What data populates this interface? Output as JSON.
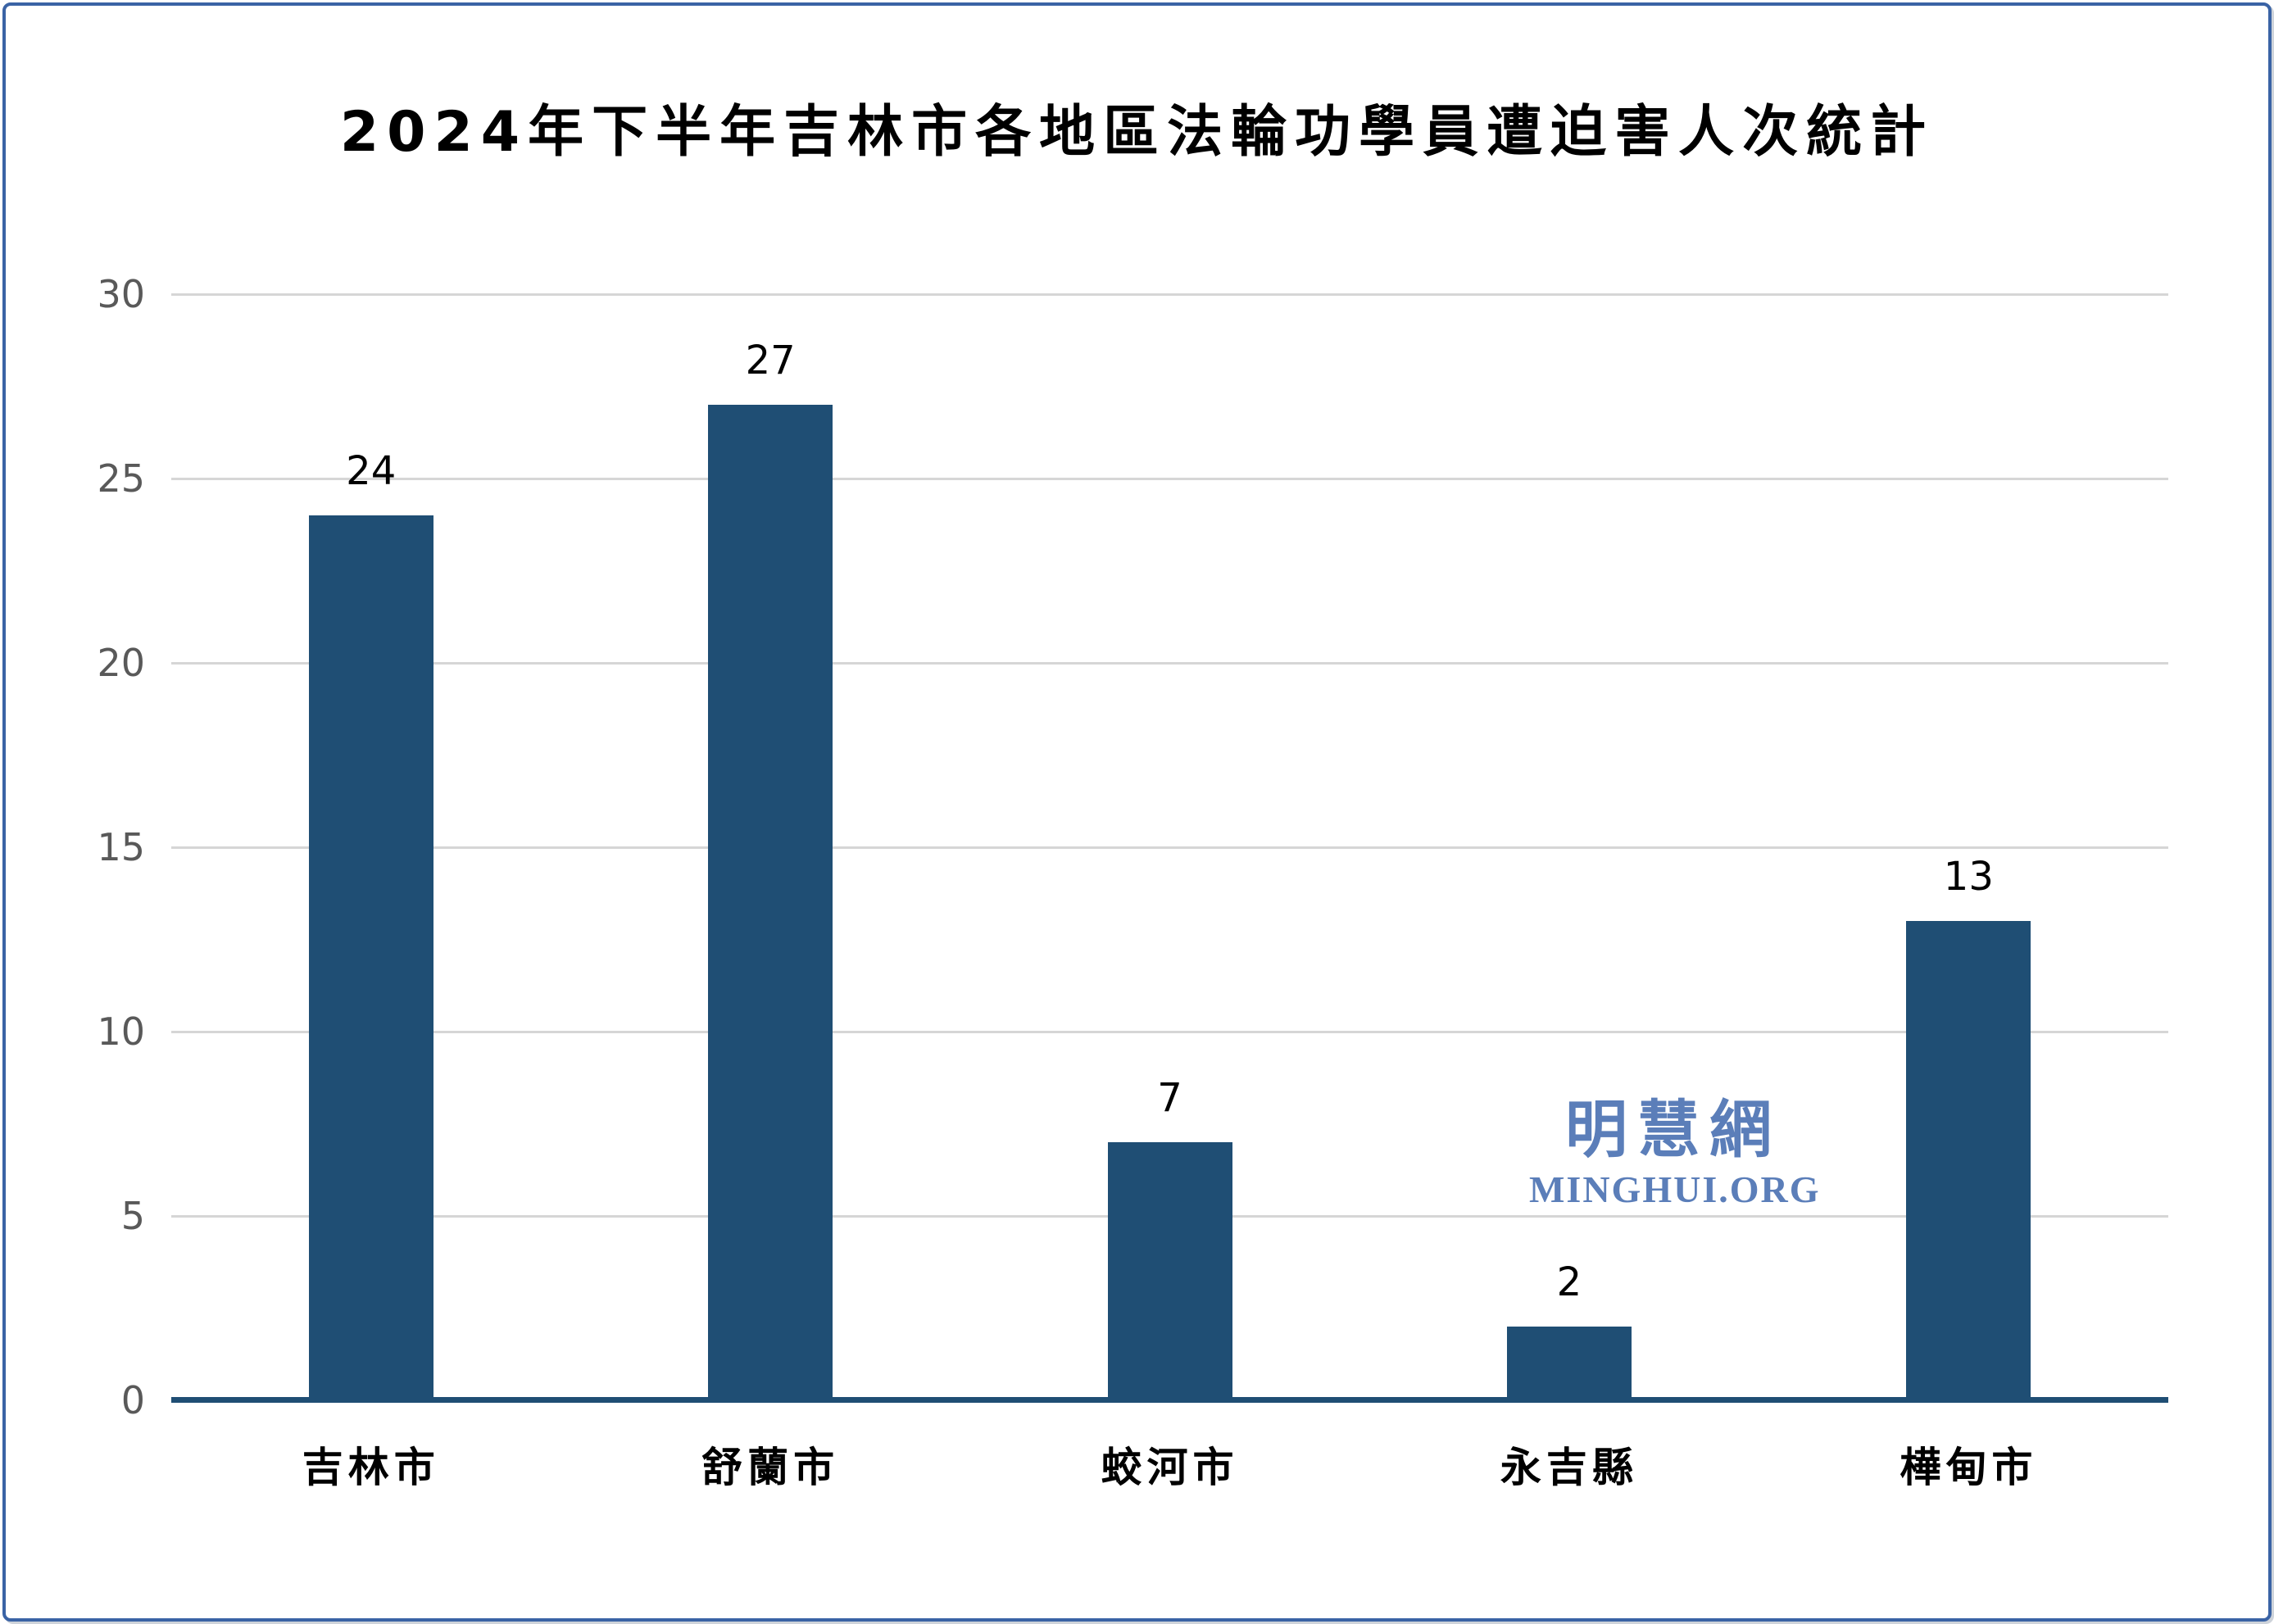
{
  "frame": {
    "background": "#FFFFFF",
    "border_color": "#3A63A5"
  },
  "chart_data": {
    "type": "bar",
    "title": "2024年下半年吉林市各地區法輪功學員遭迫害人次統計",
    "categories": [
      "吉林市",
      "舒蘭市",
      "蛟河市",
      "永吉縣",
      "樺甸市"
    ],
    "values": [
      24,
      27,
      7,
      2,
      13
    ],
    "xlabel": "",
    "ylabel": "",
    "ylim": [
      0,
      30
    ],
    "yticks": [
      0,
      5,
      10,
      15,
      20,
      25,
      30
    ],
    "grid": "horizontal",
    "legend": "none",
    "bar_color": "#1F4E74",
    "axis_line_color": "#1F4E74",
    "gridline_color": "#D6D6D6",
    "tick_label_color": "#595959",
    "value_label_color": "#000000",
    "title_color": "#000000"
  },
  "watermark": {
    "cjk_text": "明慧網",
    "latin_text": "MINGHUI.ORG",
    "color": "#5B7EB9"
  }
}
